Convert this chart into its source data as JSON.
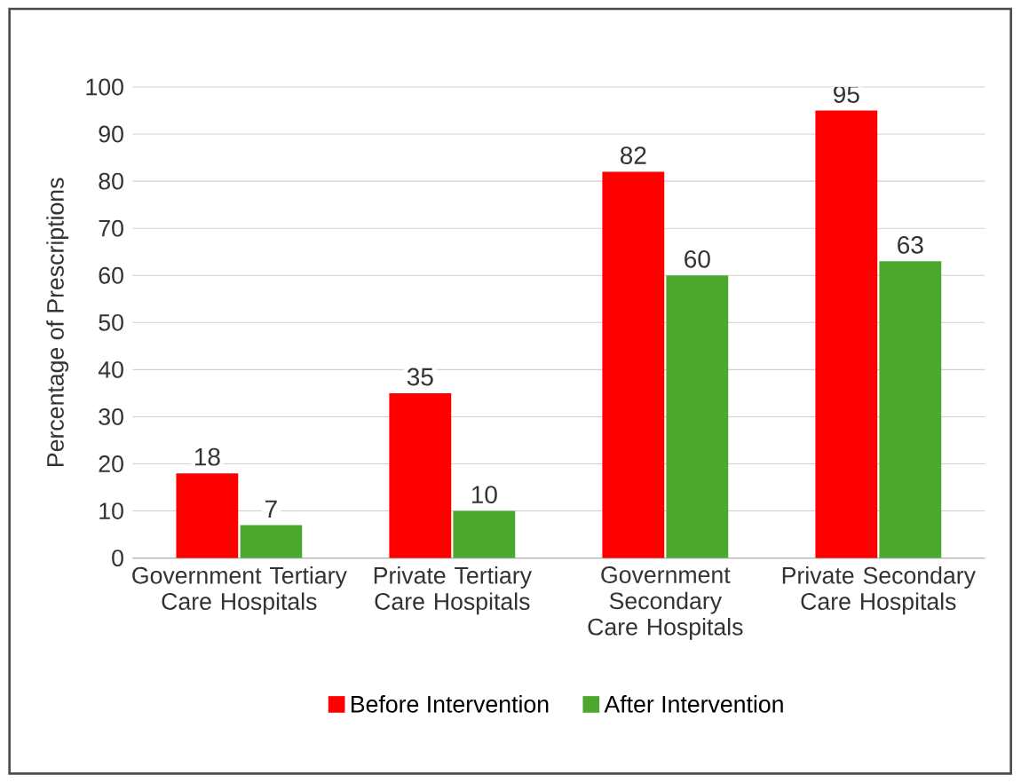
{
  "chart_data": {
    "type": "bar",
    "categories": [
      "Government Tertiary Care Hospitals",
      "Private Tertiary Care Hospitals",
      "Government Secondary Care Hospitals",
      "Private Secondary Care Hospitals"
    ],
    "series": [
      {
        "name": "Before Intervention",
        "color": "#ff0000",
        "values": [
          18,
          35,
          82,
          95
        ]
      },
      {
        "name": "After Intervention",
        "color": "#4ea72e",
        "values": [
          7,
          10,
          60,
          63
        ]
      }
    ],
    "ylabel": "Percentage of Prescriptions",
    "ylim": [
      0,
      100
    ],
    "yticks": [
      0,
      10,
      20,
      30,
      40,
      50,
      60,
      70,
      80,
      90,
      100
    ],
    "grid": "y",
    "legend": "bottom",
    "data_labels": true
  }
}
